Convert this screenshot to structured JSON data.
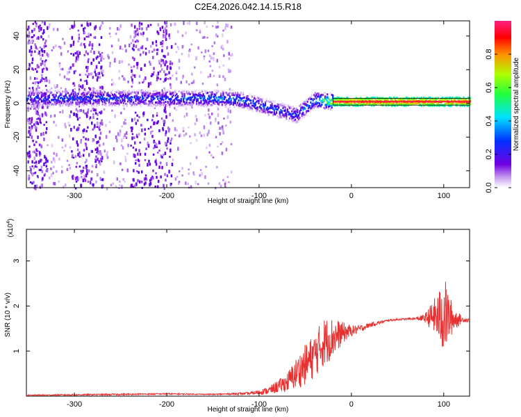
{
  "chart_data": [
    {
      "type": "heatmap",
      "title": "C2E4.2026.042.14.15.R18",
      "xlabel": "Height of straight line (km)",
      "ylabel": "Frequency (Hz)",
      "xlim": [
        -352,
        128
      ],
      "ylim": [
        -50,
        49
      ],
      "xticks": [
        -300,
        -200,
        -100,
        0,
        100
      ],
      "yticks": [
        -40,
        -20,
        0,
        20,
        40
      ],
      "xtick_labels": [
        "-300",
        "-200",
        "-100",
        "0",
        "100"
      ],
      "ytick_labels": [
        "-40",
        "-20",
        "0",
        "20",
        "40"
      ],
      "colorbar": {
        "label": "Normalized spectral amplitude",
        "range": [
          0,
          1
        ],
        "ticks": [
          0.0,
          0.2,
          0.4,
          0.6,
          0.8
        ],
        "tick_labels": [
          "0.0",
          "0.2",
          "0.4",
          "0.6",
          "0.8"
        ],
        "colormap": "rainbow (white-violet-blue-cyan-green-yellow-red-magenta)"
      },
      "ridge": [
        {
          "x": -350,
          "freq": 3,
          "amp": 0.3
        },
        {
          "x": -300,
          "freq": 3,
          "amp": 0.3
        },
        {
          "x": -250,
          "freq": 3,
          "amp": 0.3
        },
        {
          "x": -200,
          "freq": 3,
          "amp": 0.3
        },
        {
          "x": -150,
          "freq": 3,
          "amp": 0.35
        },
        {
          "x": -120,
          "freq": 2,
          "amp": 0.35
        },
        {
          "x": -100,
          "freq": -1,
          "amp": 0.3
        },
        {
          "x": -80,
          "freq": -4,
          "amp": 0.3
        },
        {
          "x": -60,
          "freq": -7,
          "amp": 0.3
        },
        {
          "x": -40,
          "freq": 2,
          "amp": 0.4
        },
        {
          "x": -20,
          "freq": 1,
          "amp": 0.85
        },
        {
          "x": 0,
          "freq": 1,
          "amp": 0.9
        },
        {
          "x": 50,
          "freq": 1,
          "amp": 0.9
        },
        {
          "x": 100,
          "freq": 1,
          "amp": 0.9
        },
        {
          "x": 128,
          "freq": 1,
          "amp": 0.9
        }
      ]
    },
    {
      "type": "line",
      "xlabel": "Height of straight line (km)",
      "ylabel": "SNR (10 * v/v)",
      "y_scale_label": "(x10^4)",
      "y_scale_base": "(x10",
      "y_scale_exp": "4",
      "y_scale_close": ")",
      "xlim": [
        -352,
        128
      ],
      "ylim": [
        0,
        3.7
      ],
      "xticks": [
        -300,
        -200,
        -100,
        0,
        100
      ],
      "yticks": [
        1,
        2,
        3
      ],
      "xtick_labels": [
        "-300",
        "-200",
        "-100",
        "0",
        "100"
      ],
      "ytick_labels": [
        "1",
        "2",
        "3"
      ],
      "line_color": "#e83030",
      "series": [
        {
          "name": "SNR",
          "x": [
            -352,
            -300,
            -250,
            -200,
            -150,
            -110,
            -90,
            -70,
            -60,
            -50,
            -40,
            -30,
            -20,
            -10,
            0,
            10,
            20,
            30,
            40,
            50,
            60,
            70,
            80,
            90,
            95,
            100,
            105,
            110,
            120,
            128
          ],
          "y": [
            0.02,
            0.03,
            0.04,
            0.05,
            0.04,
            0.06,
            0.12,
            0.3,
            0.5,
            0.7,
            0.9,
            1.2,
            1.3,
            1.4,
            1.45,
            1.5,
            1.58,
            1.63,
            1.68,
            1.7,
            1.71,
            1.72,
            1.73,
            1.78,
            1.75,
            1.8,
            1.75,
            1.72,
            1.7,
            1.68
          ],
          "noise_amp": [
            0.01,
            0.015,
            0.015,
            0.015,
            0.01,
            0.03,
            0.08,
            0.2,
            0.35,
            0.45,
            0.5,
            0.55,
            0.45,
            0.25,
            0.12,
            0.08,
            0.05,
            0.04,
            0.02,
            0.02,
            0.02,
            0.03,
            0.1,
            0.4,
            0.6,
            0.9,
            0.6,
            0.3,
            0.06,
            0.04
          ]
        }
      ]
    }
  ]
}
